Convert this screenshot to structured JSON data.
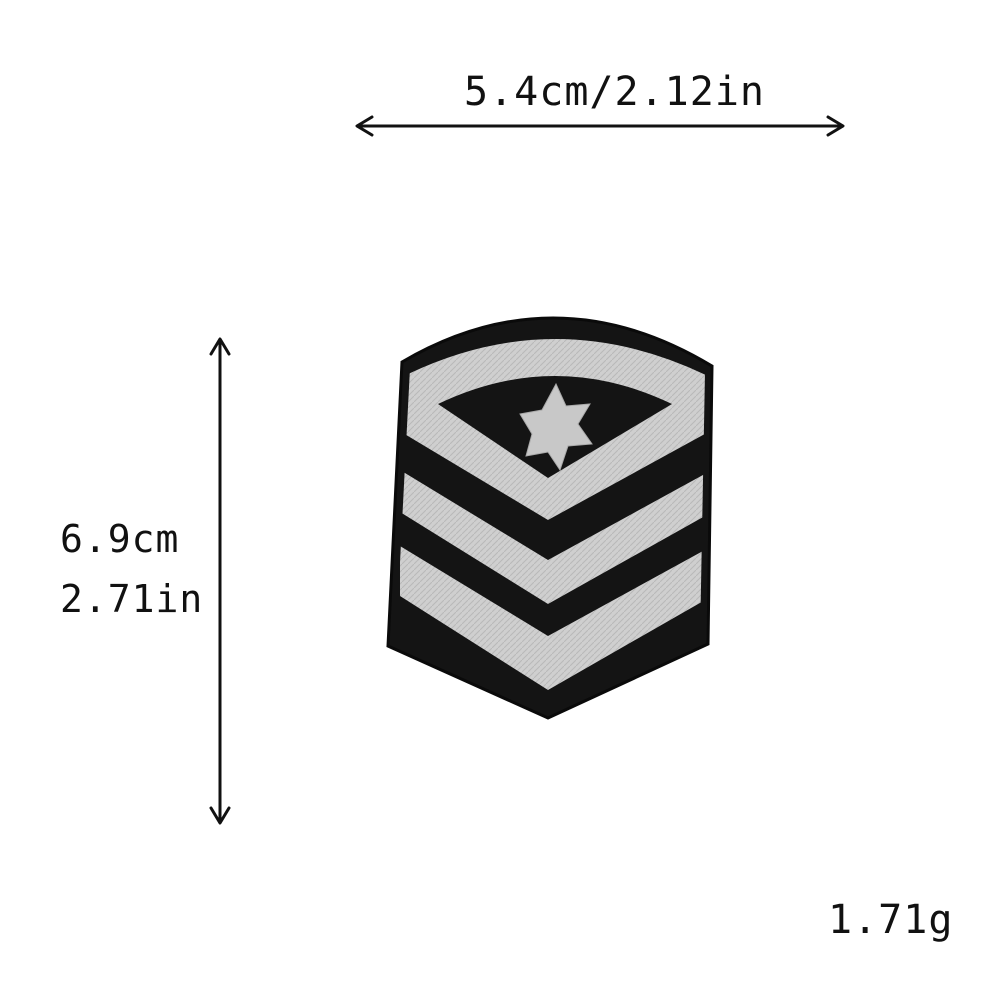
{
  "dimensions": {
    "width_label": "5.4cm/2.12in",
    "height_cm_label": "6.9cm",
    "height_in_label": "2.71in",
    "weight_label": "1.71g"
  },
  "colors": {
    "patch_border": "#111111",
    "patch_black": "#141414",
    "patch_silver": "#cfcfcf",
    "text": "#111111"
  },
  "icons": {
    "patch": "sergeant-chevron-star-patch-icon",
    "star": "star-icon",
    "width_arrow": "horizontal-double-arrow-icon",
    "height_arrow": "vertical-double-arrow-icon"
  }
}
